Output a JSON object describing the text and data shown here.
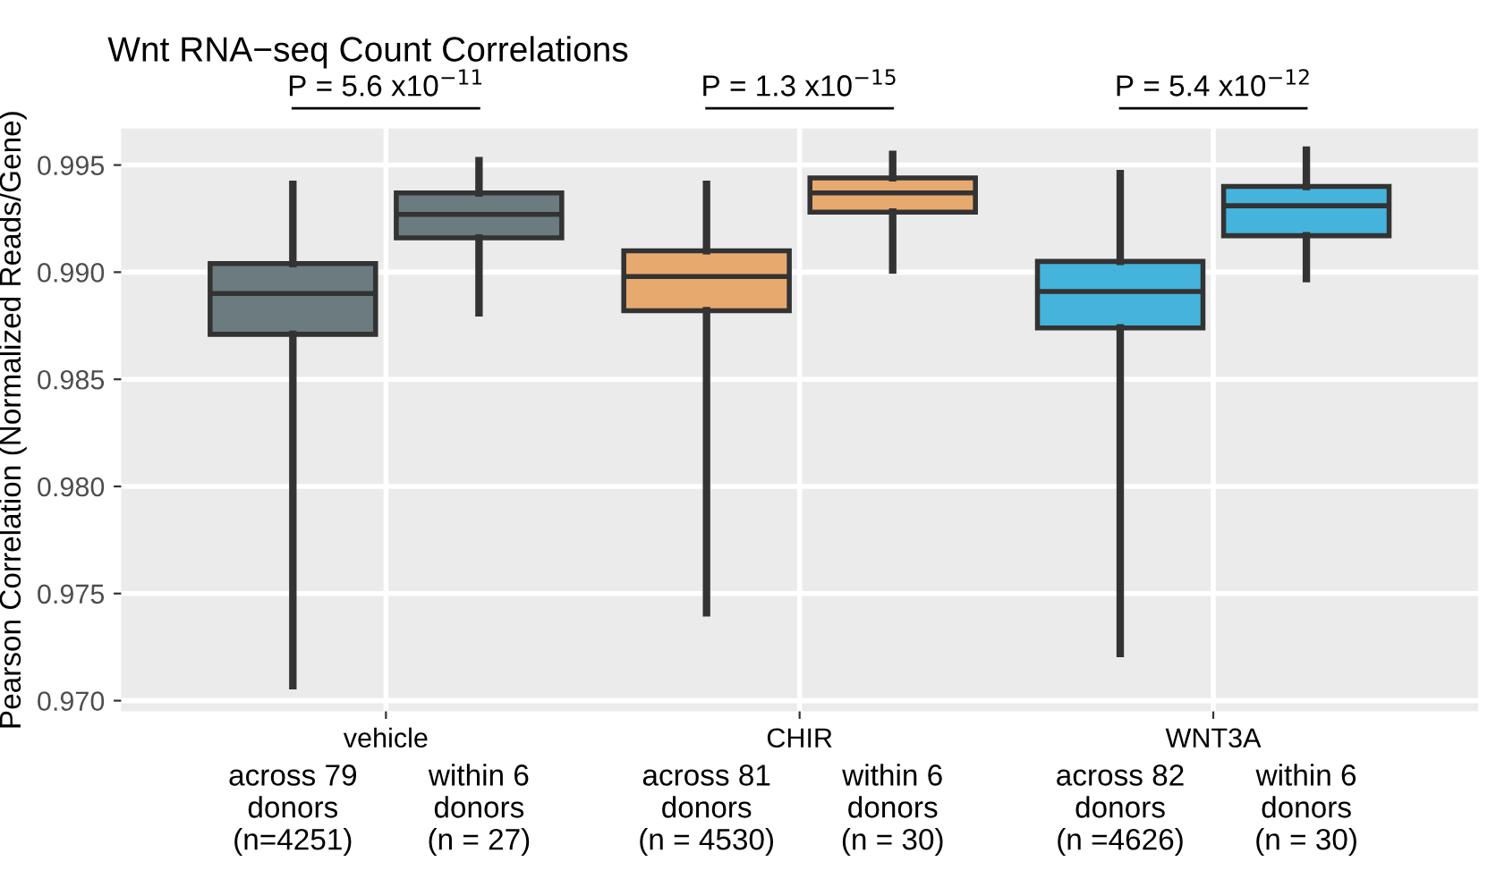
{
  "chart_data": {
    "type": "box",
    "title": "Wnt RNA−seq Count Correlations",
    "ylabel": "Pearson Correlation (Normalized Reads/Gene)",
    "categories": [
      "vehicle",
      "CHIR",
      "WNT3A"
    ],
    "series": [
      {
        "colors": [
          "#6b7b80",
          "#e8a96e",
          "#45b4dc"
        ],
        "boxes": [
          {
            "low": 0.9707,
            "q1": 0.9871,
            "median": 0.989,
            "q3": 0.9904,
            "high": 0.9941
          },
          {
            "low": 0.9741,
            "q1": 0.9882,
            "median": 0.9898,
            "q3": 0.991,
            "high": 0.9941
          },
          {
            "low": 0.9722,
            "q1": 0.9874,
            "median": 0.9891,
            "q3": 0.9905,
            "high": 0.9946
          }
        ]
      },
      {
        "colors": [
          "#6b7b80",
          "#e8a96e",
          "#45b4dc"
        ],
        "boxes": [
          {
            "low": 0.9881,
            "q1": 0.9916,
            "median": 0.9927,
            "q3": 0.9937,
            "high": 0.9952
          },
          {
            "low": 0.9901,
            "q1": 0.9928,
            "median": 0.9937,
            "q3": 0.9944,
            "high": 0.9955
          },
          {
            "low": 0.9897,
            "q1": 0.9917,
            "median": 0.9931,
            "q3": 0.994,
            "high": 0.9957
          }
        ]
      }
    ],
    "ylim": [
      0.9695,
      0.9967
    ],
    "yticks": [
      {
        "value": 0.97,
        "label": "0.970"
      },
      0.975,
      {
        "value": 0.98,
        "label": "0.980"
      },
      0.985,
      {
        "value": 0.99,
        "label": "0.990"
      },
      0.995
    ],
    "grid": true,
    "annotations": [
      "P = 5.6 x10$^{−11}$",
      "P = 1.3 x10$^{−15}$",
      "P = 5.4 x10$^{−12}$",
      "across 79\ndonors\n(n=4251)",
      "within 6\ndonors\n(n = 27)",
      "across 81\ndonors\n(n = 4530)",
      "within 6\ndonors\n(n = 30)",
      "across 82\ndonors\n(n =4626)",
      "within 6\ndonors\n(n = 30)"
    ]
  }
}
